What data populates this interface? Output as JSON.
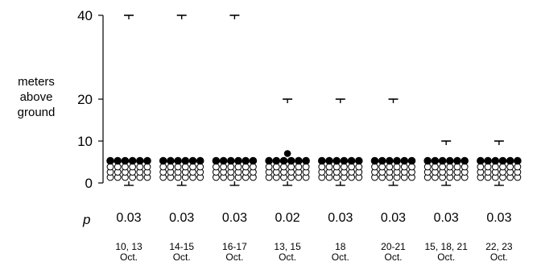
{
  "chart_data": {
    "type": "scatter",
    "ylabel": [
      "meters",
      "above",
      "ground"
    ],
    "yticks": [
      0,
      10,
      20,
      40
    ],
    "p_label": "p",
    "groups": [
      {
        "date_line1": "10, 13",
        "date_line2": "Oct.",
        "p": "0.03",
        "height": 40,
        "filled": 6,
        "open": 18,
        "extra_filled_above": 0
      },
      {
        "date_line1": "14-15",
        "date_line2": "Oct.",
        "p": "0.03",
        "height": 40,
        "filled": 6,
        "open": 18,
        "extra_filled_above": 0
      },
      {
        "date_line1": "16-17",
        "date_line2": "Oct.",
        "p": "0.03",
        "height": 40,
        "filled": 6,
        "open": 18,
        "extra_filled_above": 0
      },
      {
        "date_line1": "13, 15",
        "date_line2": "Oct.",
        "p": "0.02",
        "height": 20,
        "filled": 6,
        "open": 18,
        "extra_filled_above": 1
      },
      {
        "date_line1": "18",
        "date_line2": "Oct.",
        "p": "0.03",
        "height": 20,
        "filled": 6,
        "open": 18,
        "extra_filled_above": 0
      },
      {
        "date_line1": "20-21",
        "date_line2": "Oct.",
        "p": "0.03",
        "height": 20,
        "filled": 6,
        "open": 18,
        "extra_filled_above": 0
      },
      {
        "date_line1": "15, 18, 21",
        "date_line2": "Oct.",
        "p": "0.03",
        "height": 10,
        "filled": 6,
        "open": 18,
        "extra_filled_above": 0
      },
      {
        "date_line1": "22, 23",
        "date_line2": "Oct.",
        "p": "0.03",
        "height": 10,
        "filled": 6,
        "open": 18,
        "extra_filled_above": 0
      }
    ]
  }
}
